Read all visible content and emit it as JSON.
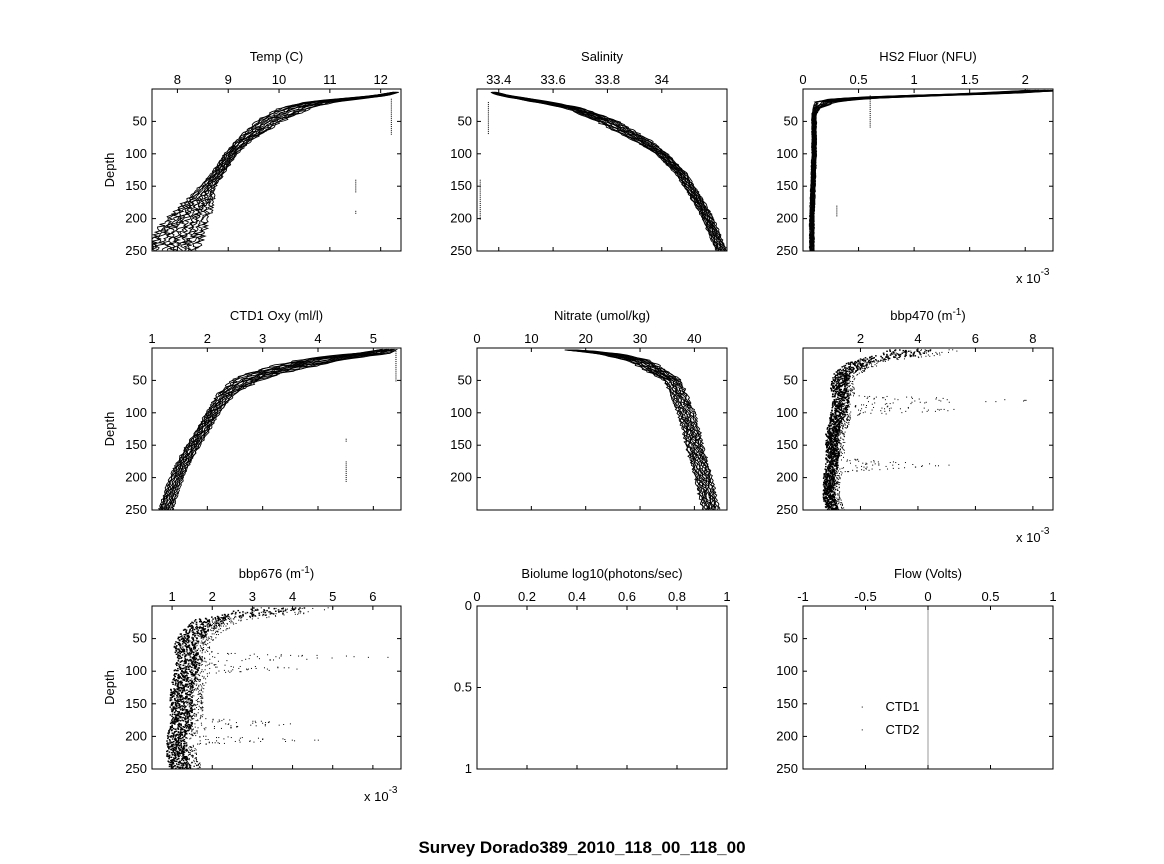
{
  "figure": {
    "suptitle": "Survey Dorado389_2010_118_00_118_00",
    "ylabel": "Depth"
  },
  "chart_data": [
    {
      "type": "line",
      "panel": "temp",
      "title": "Temp (C)",
      "xlim": [
        7.5,
        12.4
      ],
      "ylim": [
        0,
        250
      ],
      "xticks": [
        8,
        9,
        10,
        11,
        12
      ],
      "yticks": [
        50,
        100,
        150,
        200,
        250
      ],
      "ylabel": "Depth",
      "series": [
        {
          "depth": [
            5,
            10,
            20,
            30,
            50,
            80,
            100,
            130,
            150,
            170,
            200,
            220,
            250
          ],
          "values": [
            12.3,
            12.0,
            10.8,
            10.3,
            9.8,
            9.3,
            9.05,
            8.8,
            8.6,
            8.45,
            8.2,
            8.05,
            7.9
          ]
        }
      ],
      "envelope": {
        "spread": [
          0.05,
          0.15,
          0.3,
          0.3,
          0.25,
          0.15,
          0.12,
          0.12,
          0.15,
          0.25,
          0.4,
          0.45,
          0.5
        ]
      },
      "outliers": [
        {
          "x": 12.2,
          "y_start": 15,
          "y_end": 70
        },
        {
          "x": 11.5,
          "y_start": 140,
          "y_end": 160
        },
        {
          "x": 11.5,
          "y_start": 188,
          "y_end": 192
        }
      ]
    },
    {
      "type": "line",
      "panel": "salinity",
      "title": "Salinity",
      "xlim": [
        33.32,
        34.24
      ],
      "ylim": [
        0,
        250
      ],
      "xticks": [
        33.4,
        33.6,
        33.8,
        34
      ],
      "xtick_labels": [
        "33.4",
        "33.6",
        "33.8",
        "34"
      ],
      "yticks": [
        50,
        100,
        150,
        200,
        250
      ],
      "series": [
        {
          "depth": [
            5,
            10,
            20,
            30,
            50,
            80,
            100,
            130,
            150,
            170,
            200,
            220,
            250
          ],
          "values": [
            33.38,
            33.42,
            33.56,
            33.68,
            33.8,
            33.93,
            34.0,
            34.07,
            34.1,
            34.13,
            34.17,
            34.19,
            34.22
          ]
        }
      ],
      "envelope": {
        "spread": [
          0.01,
          0.02,
          0.03,
          0.03,
          0.04,
          0.03,
          0.02,
          0.02,
          0.02,
          0.02,
          0.02,
          0.02,
          0.02
        ]
      },
      "outliers": [
        {
          "x": 33.36,
          "y_start": 20,
          "y_end": 70
        },
        {
          "x": 33.33,
          "y_start": 140,
          "y_end": 200
        }
      ]
    },
    {
      "type": "line",
      "panel": "fluor",
      "title": "HS2 Fluor (NFU)",
      "xlim": [
        0,
        0.00225
      ],
      "ylim": [
        0,
        250
      ],
      "xticks": [
        0,
        0.0005,
        0.001,
        0.0015,
        0.002
      ],
      "xtick_labels": [
        "0",
        "0.5",
        "1",
        "1.5",
        "2"
      ],
      "multiplier": "x 10",
      "multiplier_exp": "-3",
      "yticks": [
        50,
        100,
        150,
        200,
        250
      ],
      "series": [
        {
          "depth": [
            2,
            5,
            8,
            10,
            12,
            15,
            20,
            30,
            40,
            60,
            100,
            150,
            200,
            250
          ],
          "values": [
            0.0022,
            0.0019,
            0.0015,
            0.0011,
            0.0008,
            0.0004,
            0.0002,
            0.00012,
            0.0001,
            0.0001,
            0.0001,
            9e-05,
            8e-05,
            8e-05
          ]
        }
      ],
      "envelope": {
        "spread": [
          0.0002,
          0.0002,
          0.0002,
          0.0002,
          0.0002,
          0.00015,
          0.0001,
          3e-05,
          2e-05,
          2e-05,
          2e-05,
          2e-05,
          2e-05,
          2e-05
        ]
      },
      "outliers": [
        {
          "x": 0.0006,
          "y_start": 10,
          "y_end": 60
        },
        {
          "x": 0.0003,
          "y_start": 180,
          "y_end": 195
        }
      ]
    },
    {
      "type": "line",
      "panel": "oxy",
      "title": "CTD1 Oxy (ml/l)",
      "xlim": [
        1,
        5.5
      ],
      "ylim": [
        0,
        250
      ],
      "xticks": [
        1,
        2,
        3,
        4,
        5
      ],
      "yticks": [
        50,
        100,
        150,
        200,
        250
      ],
      "ylabel": "Depth",
      "series": [
        {
          "depth": [
            2,
            8,
            15,
            25,
            40,
            50,
            70,
            100,
            130,
            150,
            180,
            210,
            250
          ],
          "values": [
            5.3,
            5.0,
            4.3,
            3.7,
            3.0,
            2.7,
            2.35,
            2.1,
            1.9,
            1.75,
            1.55,
            1.4,
            1.25
          ]
        }
      ],
      "envelope": {
        "spread": [
          0.15,
          0.3,
          0.4,
          0.4,
          0.3,
          0.25,
          0.15,
          0.12,
          0.12,
          0.12,
          0.12,
          0.12,
          0.12
        ]
      },
      "outliers": [
        {
          "x": 5.4,
          "y_start": 5,
          "y_end": 50
        },
        {
          "x": 4.5,
          "y_start": 140,
          "y_end": 145
        },
        {
          "x": 4.5,
          "y_start": 175,
          "y_end": 205
        }
      ]
    },
    {
      "type": "line",
      "panel": "nitrate",
      "title": "Nitrate (umol/kg)",
      "xlim": [
        0,
        46
      ],
      "ylim": [
        0,
        250
      ],
      "xticks": [
        0,
        10,
        20,
        30,
        40
      ],
      "yticks": [
        50,
        100,
        150,
        200
      ],
      "series": [
        {
          "depth": [
            3,
            5,
            10,
            20,
            30,
            50,
            80,
            100,
            130,
            150,
            180,
            200,
            220,
            240,
            250
          ],
          "values": [
            17,
            20,
            25,
            30,
            32,
            36,
            37.5,
            38.5,
            39.5,
            40,
            41,
            41.7,
            42.2,
            42.8,
            43
          ]
        }
      ],
      "envelope": {
        "spread": [
          1,
          1.5,
          2,
          2,
          2,
          1.5,
          1.5,
          1.5,
          1.5,
          1.5,
          1.5,
          1.5,
          1.5,
          1.5,
          1.5
        ]
      },
      "outliers": []
    },
    {
      "type": "scatter",
      "panel": "bbp470",
      "title": "bbp470 (m",
      "title_sup": "-1",
      "title_end": ")",
      "xlim": [
        0,
        0.0087
      ],
      "ylim": [
        0,
        250
      ],
      "xticks": [
        0.002,
        0.004,
        0.006,
        0.008
      ],
      "xtick_labels": [
        "2",
        "4",
        "6",
        "8"
      ],
      "multiplier": "x 10",
      "multiplier_exp": "-3",
      "yticks": [
        50,
        100,
        150,
        200,
        250
      ],
      "profile": {
        "depth": [
          2,
          10,
          20,
          40,
          60,
          80,
          100,
          130,
          150,
          180,
          200,
          230,
          250
        ],
        "values": [
          0.0035,
          0.003,
          0.0018,
          0.0012,
          0.0011,
          0.0012,
          0.0011,
          0.0009,
          0.0009,
          0.0009,
          0.0008,
          0.0008,
          0.0009
        ]
      },
      "plumes": [
        {
          "depth": 80,
          "reach": 0.0087,
          "width": 8
        },
        {
          "depth": 95,
          "reach": 0.0058,
          "width": 10
        },
        {
          "depth": 180,
          "reach": 0.0052,
          "width": 12
        }
      ]
    },
    {
      "type": "scatter",
      "panel": "bbp676",
      "title": "bbp676 (m",
      "title_sup": "-1",
      "title_end": ")",
      "xlim": [
        0.0005,
        0.0067
      ],
      "ylim": [
        0,
        250
      ],
      "xticks": [
        0.001,
        0.002,
        0.003,
        0.004,
        0.005,
        0.006
      ],
      "xtick_labels": [
        "1",
        "2",
        "3",
        "4",
        "5",
        "6"
      ],
      "multiplier": "x 10",
      "multiplier_exp": "-3",
      "yticks": [
        50,
        100,
        150,
        200,
        250
      ],
      "ylabel": "Depth",
      "profile": {
        "depth": [
          2,
          10,
          20,
          40,
          60,
          80,
          100,
          130,
          150,
          180,
          200,
          230,
          250
        ],
        "values": [
          0.0032,
          0.0028,
          0.0018,
          0.0014,
          0.0012,
          0.0013,
          0.0012,
          0.0011,
          0.0011,
          0.0011,
          0.001,
          0.001,
          0.0011
        ]
      },
      "plumes": [
        {
          "depth": 78,
          "reach": 0.0067,
          "width": 8
        },
        {
          "depth": 95,
          "reach": 0.0045,
          "width": 10
        },
        {
          "depth": 180,
          "reach": 0.0043,
          "width": 12
        },
        {
          "depth": 205,
          "reach": 0.0048,
          "width": 8
        }
      ]
    },
    {
      "type": "line",
      "panel": "biolume",
      "title": "Biolume log10(photons/sec)",
      "xlim": [
        0,
        1
      ],
      "ylim": [
        0,
        1
      ],
      "xticks": [
        0,
        0.2,
        0.4,
        0.6,
        0.8,
        1
      ],
      "xtick_labels": [
        "0",
        "0.2",
        "0.4",
        "0.6",
        "0.8",
        "1"
      ],
      "yticks": [
        0,
        0.5,
        1
      ],
      "ytick_labels": [
        "0",
        "0.5",
        "1"
      ],
      "series": []
    },
    {
      "type": "line",
      "panel": "flow",
      "title": "Flow (Volts)",
      "xlim": [
        -1,
        1
      ],
      "ylim": [
        0,
        250
      ],
      "xticks": [
        -1,
        -0.5,
        0,
        0.5,
        1
      ],
      "xtick_labels": [
        "-1",
        "-0.5",
        "0",
        "0.5",
        "1"
      ],
      "yticks": [
        50,
        100,
        150,
        200,
        250
      ],
      "series": [
        {
          "name": "CTD1",
          "x": [
            0,
            0
          ],
          "depth": [
            0,
            250
          ]
        },
        {
          "name": "CTD2",
          "x": [
            0,
            0
          ],
          "depth": [
            0,
            250
          ]
        }
      ],
      "legend": [
        "CTD1",
        "CTD2"
      ],
      "legend_position": "lower-left"
    }
  ]
}
